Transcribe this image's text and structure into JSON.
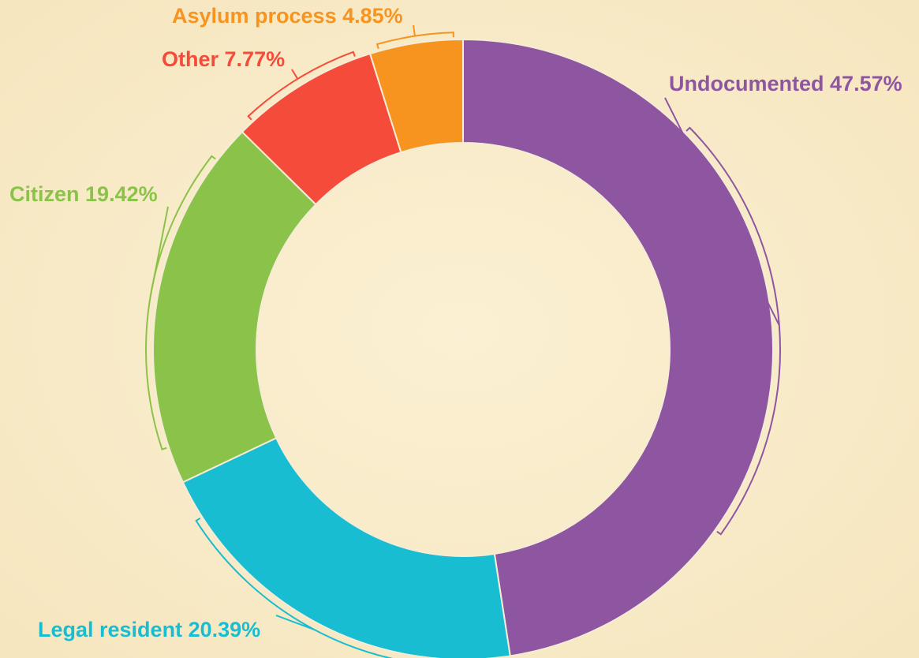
{
  "chart_data": {
    "type": "donut",
    "categories": [
      "Undocumented",
      "Legal resident",
      "Citizen",
      "Other",
      "Asylum process"
    ],
    "values": [
      47.57,
      20.39,
      19.42,
      7.77,
      4.85
    ],
    "value_labels": [
      "47.57%",
      "20.39%",
      "19.42%",
      "7.77%",
      "4.85%"
    ],
    "colors": [
      "#8e55a1",
      "#18bdd2",
      "#8bc34a",
      "#f44b3a",
      "#f7941f"
    ]
  }
}
